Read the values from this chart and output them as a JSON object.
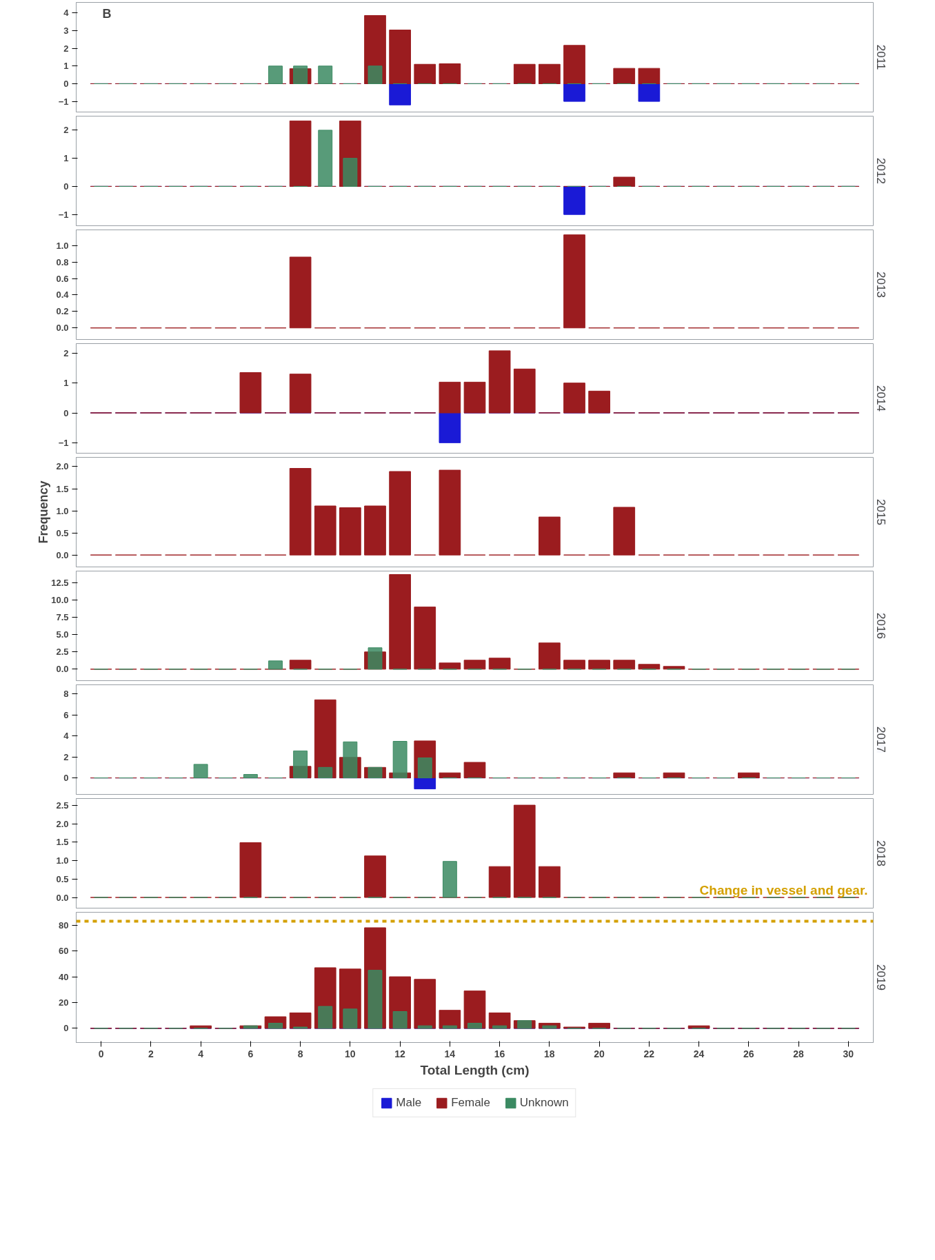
{
  "chart_data": [
    {
      "type": "bar",
      "x": [
        0,
        1,
        2,
        3,
        4,
        5,
        6,
        7,
        8,
        9,
        10,
        11,
        12,
        13,
        14,
        15,
        16,
        17,
        18,
        19,
        20,
        21,
        22,
        23,
        24,
        25,
        26,
        27,
        28,
        29,
        30
      ],
      "xlim": [
        -1,
        31
      ],
      "ylim": [
        -1.6,
        4.6
      ],
      "yticks": [
        -1,
        0,
        1,
        2,
        3,
        4
      ],
      "y2label": "2011",
      "tick_labels": "y",
      "legend": false,
      "annotations": [
        "B"
      ],
      "series": [
        {
          "color": "#1a1ad6",
          "values": [
            0,
            0,
            0,
            0,
            0,
            0,
            0,
            0,
            0,
            0,
            0,
            0,
            -1.2,
            0,
            0,
            0,
            0,
            0,
            0,
            -1,
            0,
            0,
            -1,
            0,
            0,
            0,
            0,
            0,
            0,
            0,
            0
          ]
        },
        {
          "color": "#9b1c1f",
          "values": [
            0,
            0,
            0,
            0,
            0,
            0,
            0,
            0,
            0.85,
            0,
            0,
            3.86,
            3.04,
            1.1,
            1.13,
            0,
            0,
            1.1,
            1.1,
            2.17,
            0,
            0.87,
            0.87,
            0,
            0,
            0,
            0,
            0,
            0,
            0,
            0
          ]
        },
        {
          "color": "#3b8a62",
          "values": [
            0,
            0,
            0,
            0,
            0,
            0,
            0,
            1,
            1,
            1,
            0,
            1,
            0,
            0,
            0,
            0,
            0,
            0,
            0,
            0,
            0,
            0,
            0,
            0,
            0,
            0,
            0,
            0,
            0,
            0,
            0
          ]
        }
      ]
    },
    {
      "type": "bar",
      "x": [
        0,
        1,
        2,
        3,
        4,
        5,
        6,
        7,
        8,
        9,
        10,
        11,
        12,
        13,
        14,
        15,
        16,
        17,
        18,
        19,
        20,
        21,
        22,
        23,
        24,
        25,
        26,
        27,
        28,
        29,
        30
      ],
      "xlim": [
        -1,
        31
      ],
      "ylim": [
        -1.4,
        2.5
      ],
      "yticks": [
        -1,
        0,
        1,
        2
      ],
      "y2label": "2012",
      "tick_labels": "y",
      "legend": false,
      "series": [
        {
          "color": "#1a1ad6",
          "values": [
            0,
            0,
            0,
            0,
            0,
            0,
            0,
            0,
            0,
            0,
            0,
            0,
            0,
            0,
            0,
            0,
            0,
            0,
            0,
            -1,
            0,
            0,
            0,
            0,
            0,
            0,
            0,
            0,
            0,
            0,
            0
          ]
        },
        {
          "color": "#9b1c1f",
          "values": [
            0,
            0,
            0,
            0,
            0,
            0,
            0,
            0,
            2.33,
            0,
            2.33,
            0,
            0,
            0,
            0,
            0,
            0,
            0,
            0,
            0,
            0,
            0.33,
            0,
            0,
            0,
            0,
            0,
            0,
            0,
            0,
            0
          ]
        },
        {
          "color": "#3b8a62",
          "values": [
            0,
            0,
            0,
            0,
            0,
            0,
            0,
            0,
            0,
            2,
            1,
            0,
            0,
            0,
            0,
            0,
            0,
            0,
            0,
            0,
            0,
            0,
            0,
            0,
            0,
            0,
            0,
            0,
            0,
            0,
            0
          ]
        }
      ]
    },
    {
      "type": "bar",
      "x": [
        0,
        1,
        2,
        3,
        4,
        5,
        6,
        7,
        8,
        9,
        10,
        11,
        12,
        13,
        14,
        15,
        16,
        17,
        18,
        19,
        20,
        21,
        22,
        23,
        24,
        25,
        26,
        27,
        28,
        29,
        30
      ],
      "xlim": [
        -1,
        31
      ],
      "ylim": [
        -0.14,
        1.19
      ],
      "yticks": [
        {
          "value": 0,
          "label": "0.0"
        },
        0.2,
        0.4,
        0.6,
        0.8,
        {
          "value": 1,
          "label": "1.0"
        }
      ],
      "y2label": "2013",
      "tick_labels": "y",
      "legend": false,
      "series": [
        {
          "color": "#9b1c1f",
          "values": [
            0,
            0,
            0,
            0,
            0,
            0,
            0,
            0,
            0.86,
            0,
            0,
            0,
            0,
            0,
            0,
            0,
            0,
            0,
            0,
            1.13,
            0,
            0,
            0,
            0,
            0,
            0,
            0,
            0,
            0,
            0,
            0
          ]
        }
      ]
    },
    {
      "type": "bar",
      "x": [
        0,
        1,
        2,
        3,
        4,
        5,
        6,
        7,
        8,
        9,
        10,
        11,
        12,
        13,
        14,
        15,
        16,
        17,
        18,
        19,
        20,
        21,
        22,
        23,
        24,
        25,
        26,
        27,
        28,
        29,
        30
      ],
      "xlim": [
        -1,
        31
      ],
      "ylim": [
        -1.35,
        2.32
      ],
      "yticks": [
        -1,
        0,
        1,
        2
      ],
      "y2label": "2014",
      "tick_labels": "y",
      "legend": false,
      "series": [
        {
          "color": "#1a1ad6",
          "values": [
            0,
            0,
            0,
            0,
            0,
            0,
            0,
            0,
            0,
            0,
            0,
            0,
            0,
            0,
            -1,
            0,
            0,
            0,
            0,
            0,
            0,
            0,
            0,
            0,
            0,
            0,
            0,
            0,
            0,
            0,
            0
          ]
        },
        {
          "color": "#9b1c1f",
          "values": [
            0,
            0,
            0,
            0,
            0,
            0,
            1.35,
            0,
            1.3,
            0,
            0,
            0,
            0,
            0,
            1.03,
            1.03,
            2.08,
            1.47,
            0,
            1,
            0.73,
            0,
            0,
            0,
            0,
            0,
            0,
            0,
            0,
            0,
            0
          ]
        }
      ]
    },
    {
      "type": "bar",
      "x": [
        0,
        1,
        2,
        3,
        4,
        5,
        6,
        7,
        8,
        9,
        10,
        11,
        12,
        13,
        14,
        15,
        16,
        17,
        18,
        19,
        20,
        21,
        22,
        23,
        24,
        25,
        26,
        27,
        28,
        29,
        30
      ],
      "xlim": [
        -1,
        31
      ],
      "ylim": [
        -0.27,
        2.21
      ],
      "yticks": [
        {
          "value": 0,
          "label": "0.0"
        },
        0.5,
        {
          "value": 1,
          "label": "1.0"
        },
        1.5,
        {
          "value": 2,
          "label": "2.0"
        }
      ],
      "y2label": "2015",
      "ylabel": "Frequency",
      "tick_labels": "y",
      "legend": false,
      "series": [
        {
          "color": "#9b1c1f",
          "values": [
            0,
            0,
            0,
            0,
            0,
            0,
            0,
            0,
            1.96,
            1.11,
            1.07,
            1.11,
            1.89,
            0,
            1.92,
            0,
            0,
            0,
            0.86,
            0,
            0,
            1.08,
            0,
            0,
            0,
            0,
            0,
            0,
            0,
            0,
            0
          ]
        }
      ]
    },
    {
      "type": "bar",
      "x": [
        0,
        1,
        2,
        3,
        4,
        5,
        6,
        7,
        8,
        9,
        10,
        11,
        12,
        13,
        14,
        15,
        16,
        17,
        18,
        19,
        20,
        21,
        22,
        23,
        24,
        25,
        26,
        27,
        28,
        29,
        30
      ],
      "xlim": [
        -1,
        31
      ],
      "ylim": [
        -1.66,
        14.2
      ],
      "yticks": [
        {
          "value": 0,
          "label": "0.0"
        },
        2.5,
        {
          "value": 5,
          "label": "5.0"
        },
        7.5,
        {
          "value": 10,
          "label": "10.0"
        },
        12.5
      ],
      "y2label": "2016",
      "tick_labels": "y",
      "legend": false,
      "series": [
        {
          "color": "#9b1c1f",
          "values": [
            0,
            0,
            0,
            0,
            0,
            0,
            0,
            0,
            1.3,
            0,
            0,
            2.5,
            13.7,
            9,
            0.9,
            1.3,
            1.6,
            0,
            3.8,
            1.3,
            1.3,
            1.3,
            0.7,
            0.4,
            0,
            0,
            0,
            0,
            0,
            0,
            0
          ]
        },
        {
          "color": "#3b8a62",
          "values": [
            0,
            0,
            0,
            0,
            0,
            0,
            0,
            1.2,
            0,
            0,
            0,
            3.1,
            0,
            0,
            0,
            0,
            0,
            0,
            0,
            0,
            0,
            0,
            0,
            0,
            0,
            0,
            0,
            0,
            0,
            0,
            0
          ]
        }
      ]
    },
    {
      "type": "bar",
      "x": [
        0,
        1,
        2,
        3,
        4,
        5,
        6,
        7,
        8,
        9,
        10,
        11,
        12,
        13,
        14,
        15,
        16,
        17,
        18,
        19,
        20,
        21,
        22,
        23,
        24,
        25,
        26,
        27,
        28,
        29,
        30
      ],
      "xlim": [
        -1,
        31
      ],
      "ylim": [
        -1.57,
        8.86
      ],
      "yticks": [
        0,
        2,
        4,
        6,
        8
      ],
      "y2label": "2017",
      "tick_labels": "y",
      "legend": false,
      "series": [
        {
          "color": "#1a1ad6",
          "values": [
            0,
            0,
            0,
            0,
            0,
            0,
            0,
            0,
            0,
            0,
            0,
            0,
            0,
            -1.05,
            0,
            0,
            0,
            0,
            0,
            0,
            0,
            0,
            0,
            0,
            0,
            0,
            0,
            0,
            0,
            0,
            0
          ]
        },
        {
          "color": "#9b1c1f",
          "values": [
            0,
            0,
            0,
            0,
            0,
            0,
            0,
            0,
            1.1,
            7.43,
            1.95,
            1,
            0.48,
            3.52,
            0.48,
            1.48,
            0,
            0,
            0,
            0,
            0,
            0.48,
            0,
            0.48,
            0,
            0,
            0.48,
            0,
            0,
            0,
            0
          ]
        },
        {
          "color": "#3b8a62",
          "values": [
            0,
            0,
            0,
            0,
            1.29,
            0,
            0.33,
            0,
            2.57,
            1,
            3.43,
            1,
            3.48,
            1.9,
            0,
            0,
            0,
            0,
            0,
            0,
            0,
            0,
            0,
            0,
            0,
            0,
            0,
            0,
            0,
            0,
            0
          ]
        }
      ]
    },
    {
      "type": "bar",
      "x": [
        0,
        1,
        2,
        3,
        4,
        5,
        6,
        7,
        8,
        9,
        10,
        11,
        12,
        13,
        14,
        15,
        16,
        17,
        18,
        19,
        20,
        21,
        22,
        23,
        24,
        25,
        26,
        27,
        28,
        29,
        30
      ],
      "xlim": [
        -1,
        31
      ],
      "ylim": [
        -0.29,
        2.69
      ],
      "yticks": [
        {
          "value": 0,
          "label": "0.0"
        },
        0.5,
        {
          "value": 1,
          "label": "1.0"
        },
        1.5,
        {
          "value": 2,
          "label": "2.0"
        },
        2.5
      ],
      "y2label": "2018",
      "tick_labels": "y",
      "legend": false,
      "annotations": [
        "Change in vessel and gear."
      ],
      "series": [
        {
          "color": "#9b1c1f",
          "values": [
            0,
            0,
            0,
            0,
            0,
            0,
            1.49,
            0,
            0,
            0,
            0,
            1.13,
            0,
            0,
            0,
            0,
            0.84,
            2.51,
            0.84,
            0,
            0,
            0,
            0,
            0,
            0,
            0,
            0,
            0,
            0,
            0,
            0
          ]
        },
        {
          "color": "#3b8a62",
          "values": [
            0,
            0,
            0,
            0,
            0,
            0,
            0,
            0,
            0,
            0,
            0,
            0,
            0,
            0,
            0.98,
            0,
            0,
            0,
            0,
            0,
            0,
            0,
            0,
            0,
            0,
            0,
            0,
            0,
            0,
            0,
            0
          ]
        }
      ]
    },
    {
      "type": "bar",
      "x": [
        0,
        1,
        2,
        3,
        4,
        5,
        6,
        7,
        8,
        9,
        10,
        11,
        12,
        13,
        14,
        15,
        16,
        17,
        18,
        19,
        20,
        21,
        22,
        23,
        24,
        25,
        26,
        27,
        28,
        29,
        30
      ],
      "xlim": [
        -1,
        31
      ],
      "ylim": [
        -11,
        90
      ],
      "yticks": [
        0,
        20,
        40,
        60,
        80
      ],
      "xticks": [
        0,
        2,
        4,
        6,
        8,
        10,
        12,
        14,
        16,
        18,
        20,
        22,
        24,
        26,
        28,
        30
      ],
      "xlabel": "Total Length (cm)",
      "y2label": "2019",
      "legend": "bottom",
      "ref_lines": [
        {
          "axis": "y",
          "value": 83,
          "color": "#d4a000",
          "line_style": "dashed"
        }
      ],
      "series": [
        {
          "name": "Male",
          "color": "#1a1ad6",
          "values": [
            0,
            0,
            0,
            0,
            0,
            0,
            0,
            0,
            0,
            0,
            0,
            0,
            0,
            0,
            0,
            0,
            0,
            0,
            0,
            0,
            0,
            0,
            0,
            0,
            0,
            0,
            0,
            0,
            0,
            0,
            0
          ]
        },
        {
          "name": "Female",
          "color": "#9b1c1f",
          "values": [
            0,
            0,
            0,
            0,
            2,
            0,
            2,
            9,
            12,
            47,
            46,
            78,
            40,
            38,
            14,
            29,
            12,
            6,
            4,
            1,
            4,
            0,
            0,
            0,
            2,
            0,
            0,
            0,
            0,
            0,
            0
          ]
        },
        {
          "name": "Unknown",
          "color": "#3b8a62",
          "values": [
            0,
            0,
            0,
            0,
            0,
            0,
            2,
            4,
            1,
            17,
            15,
            45,
            13,
            2,
            2,
            4,
            2,
            6,
            2,
            0,
            0,
            0,
            0,
            0,
            0,
            0,
            0,
            0,
            0,
            0,
            0
          ]
        }
      ]
    }
  ]
}
